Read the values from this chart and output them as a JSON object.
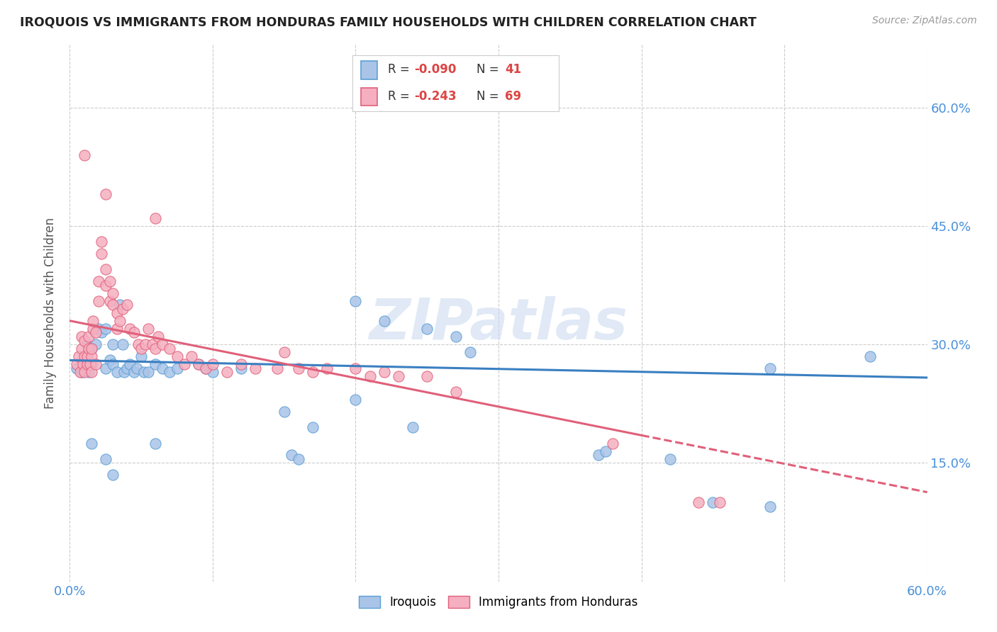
{
  "title": "IROQUOIS VS IMMIGRANTS FROM HONDURAS FAMILY HOUSEHOLDS WITH CHILDREN CORRELATION CHART",
  "source": "Source: ZipAtlas.com",
  "ylabel_label": "Family Households with Children",
  "xmin": 0.0,
  "xmax": 0.6,
  "ymin": 0.0,
  "ymax": 0.68,
  "ytick_vals": [
    0.15,
    0.3,
    0.45,
    0.6
  ],
  "xtick_vals": [
    0.0,
    0.6
  ],
  "color_iroquois": "#aac4e8",
  "color_iroquois_edge": "#5a9fd4",
  "color_honduras": "#f5afc0",
  "color_honduras_edge": "#e0607a",
  "color_line_iroquois": "#3a7fc1",
  "color_line_honduras": "#e0607a",
  "watermark": "ZIPatlas",
  "scatter_iroquois": [
    [
      0.005,
      0.27
    ],
    [
      0.008,
      0.265
    ],
    [
      0.01,
      0.28
    ],
    [
      0.01,
      0.27
    ],
    [
      0.012,
      0.3
    ],
    [
      0.013,
      0.265
    ],
    [
      0.015,
      0.275
    ],
    [
      0.015,
      0.295
    ],
    [
      0.018,
      0.3
    ],
    [
      0.02,
      0.32
    ],
    [
      0.022,
      0.315
    ],
    [
      0.025,
      0.32
    ],
    [
      0.025,
      0.27
    ],
    [
      0.028,
      0.28
    ],
    [
      0.03,
      0.3
    ],
    [
      0.03,
      0.275
    ],
    [
      0.033,
      0.265
    ],
    [
      0.035,
      0.35
    ],
    [
      0.037,
      0.3
    ],
    [
      0.038,
      0.265
    ],
    [
      0.04,
      0.27
    ],
    [
      0.042,
      0.275
    ],
    [
      0.045,
      0.265
    ],
    [
      0.047,
      0.27
    ],
    [
      0.05,
      0.285
    ],
    [
      0.052,
      0.265
    ],
    [
      0.055,
      0.265
    ],
    [
      0.06,
      0.275
    ],
    [
      0.065,
      0.27
    ],
    [
      0.07,
      0.265
    ],
    [
      0.075,
      0.27
    ],
    [
      0.09,
      0.275
    ],
    [
      0.095,
      0.27
    ],
    [
      0.1,
      0.265
    ],
    [
      0.12,
      0.27
    ],
    [
      0.2,
      0.355
    ],
    [
      0.22,
      0.33
    ],
    [
      0.25,
      0.32
    ],
    [
      0.27,
      0.31
    ],
    [
      0.28,
      0.29
    ],
    [
      0.015,
      0.175
    ],
    [
      0.025,
      0.155
    ],
    [
      0.03,
      0.135
    ],
    [
      0.06,
      0.175
    ],
    [
      0.15,
      0.215
    ],
    [
      0.17,
      0.195
    ],
    [
      0.2,
      0.23
    ],
    [
      0.24,
      0.195
    ],
    [
      0.37,
      0.16
    ],
    [
      0.375,
      0.165
    ],
    [
      0.155,
      0.16
    ],
    [
      0.16,
      0.155
    ],
    [
      0.42,
      0.155
    ],
    [
      0.49,
      0.27
    ],
    [
      0.56,
      0.285
    ],
    [
      0.45,
      0.1
    ],
    [
      0.49,
      0.095
    ]
  ],
  "scatter_honduras": [
    [
      0.005,
      0.275
    ],
    [
      0.006,
      0.285
    ],
    [
      0.007,
      0.265
    ],
    [
      0.008,
      0.295
    ],
    [
      0.008,
      0.31
    ],
    [
      0.009,
      0.275
    ],
    [
      0.01,
      0.285
    ],
    [
      0.01,
      0.265
    ],
    [
      0.01,
      0.305
    ],
    [
      0.012,
      0.275
    ],
    [
      0.012,
      0.285
    ],
    [
      0.013,
      0.295
    ],
    [
      0.013,
      0.31
    ],
    [
      0.014,
      0.275
    ],
    [
      0.015,
      0.265
    ],
    [
      0.015,
      0.285
    ],
    [
      0.015,
      0.295
    ],
    [
      0.016,
      0.32
    ],
    [
      0.016,
      0.33
    ],
    [
      0.018,
      0.275
    ],
    [
      0.018,
      0.315
    ],
    [
      0.02,
      0.355
    ],
    [
      0.02,
      0.38
    ],
    [
      0.022,
      0.415
    ],
    [
      0.022,
      0.43
    ],
    [
      0.025,
      0.375
    ],
    [
      0.025,
      0.395
    ],
    [
      0.028,
      0.355
    ],
    [
      0.028,
      0.38
    ],
    [
      0.03,
      0.35
    ],
    [
      0.03,
      0.365
    ],
    [
      0.033,
      0.32
    ],
    [
      0.033,
      0.34
    ],
    [
      0.035,
      0.33
    ],
    [
      0.037,
      0.345
    ],
    [
      0.04,
      0.35
    ],
    [
      0.042,
      0.32
    ],
    [
      0.045,
      0.315
    ],
    [
      0.048,
      0.3
    ],
    [
      0.05,
      0.295
    ],
    [
      0.053,
      0.3
    ],
    [
      0.055,
      0.32
    ],
    [
      0.058,
      0.3
    ],
    [
      0.06,
      0.295
    ],
    [
      0.062,
      0.31
    ],
    [
      0.065,
      0.3
    ],
    [
      0.07,
      0.295
    ],
    [
      0.075,
      0.285
    ],
    [
      0.08,
      0.275
    ],
    [
      0.085,
      0.285
    ],
    [
      0.09,
      0.275
    ],
    [
      0.095,
      0.27
    ],
    [
      0.1,
      0.275
    ],
    [
      0.11,
      0.265
    ],
    [
      0.12,
      0.275
    ],
    [
      0.13,
      0.27
    ],
    [
      0.145,
      0.27
    ],
    [
      0.15,
      0.29
    ],
    [
      0.16,
      0.27
    ],
    [
      0.17,
      0.265
    ],
    [
      0.18,
      0.27
    ],
    [
      0.2,
      0.27
    ],
    [
      0.21,
      0.26
    ],
    [
      0.22,
      0.265
    ],
    [
      0.23,
      0.26
    ],
    [
      0.25,
      0.26
    ],
    [
      0.27,
      0.24
    ],
    [
      0.38,
      0.175
    ],
    [
      0.01,
      0.54
    ],
    [
      0.025,
      0.49
    ],
    [
      0.06,
      0.46
    ],
    [
      0.44,
      0.1
    ],
    [
      0.455,
      0.1
    ]
  ],
  "trendline_iroquois": [
    [
      0.0,
      0.28
    ],
    [
      0.6,
      0.258
    ]
  ],
  "trendline_honduras_solid": [
    [
      0.0,
      0.33
    ],
    [
      0.4,
      0.185
    ]
  ],
  "trendline_honduras_dashed": [
    [
      0.4,
      0.185
    ],
    [
      0.6,
      0.113
    ]
  ]
}
